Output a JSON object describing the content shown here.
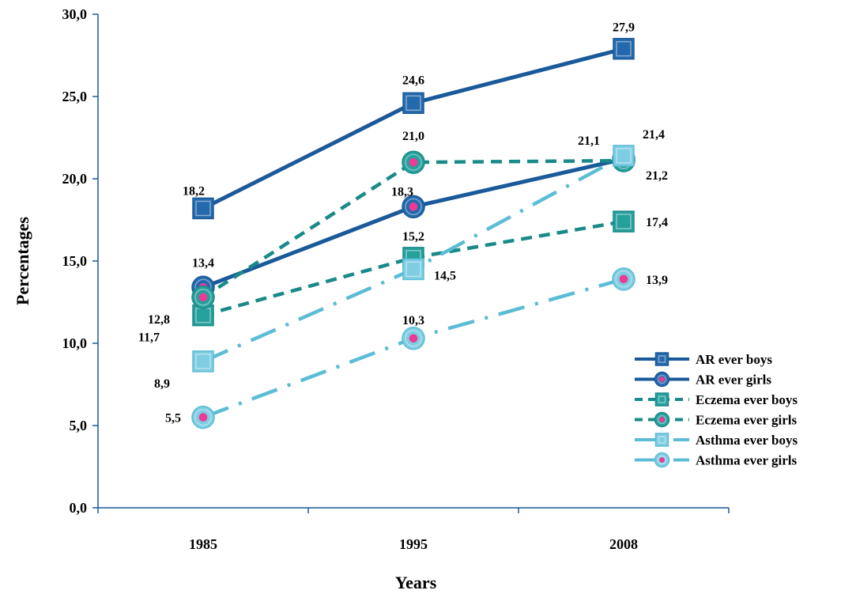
{
  "chart_data": {
    "type": "line",
    "title": "",
    "xlabel": "Years",
    "ylabel": "Percentages",
    "categories": [
      "1985",
      "1995",
      "2008"
    ],
    "ylim": [
      0,
      30
    ],
    "yticks": [
      "0,0",
      "5,0",
      "10,0",
      "15,0",
      "20,0",
      "25,0",
      "30,0"
    ],
    "grid": false,
    "legend_position": "bottom-right",
    "series": [
      {
        "name": "AR ever boys",
        "values": [
          18.2,
          24.6,
          27.9
        ],
        "labels": [
          "18,2",
          "24,6",
          "27,9"
        ],
        "color": "#1a5a9a",
        "dash": "solid",
        "marker": "square",
        "marker_fill": "#2469ac",
        "dot": false
      },
      {
        "name": "AR ever girls",
        "values": [
          13.4,
          18.3,
          21.2
        ],
        "labels": [
          "13,4",
          "18,3",
          "21,2"
        ],
        "color": "#1a5a9a",
        "dash": "solid",
        "marker": "circle",
        "marker_fill": "#2469ac",
        "dot": true
      },
      {
        "name": "Eczema ever boys",
        "values": [
          11.7,
          15.2,
          17.4
        ],
        "labels": [
          "11,7",
          "15,2",
          "17,4"
        ],
        "color": "#1a8a88",
        "dash": "dash",
        "marker": "square",
        "marker_fill": "#25a09c",
        "dot": false
      },
      {
        "name": "Eczema ever girls",
        "values": [
          12.8,
          21.0,
          21.1
        ],
        "labels": [
          "12,8",
          "21,0",
          "21,1"
        ],
        "color": "#1a8a88",
        "dash": "dash",
        "marker": "circle",
        "marker_fill": "#25a09c",
        "dot": true
      },
      {
        "name": "Asthma ever boys",
        "values": [
          8.9,
          14.5,
          21.4
        ],
        "labels": [
          "8,9",
          "14,5",
          "21,4"
        ],
        "color": "#5bbcd6",
        "dash": "dashdot",
        "marker": "square",
        "marker_fill": "#7ecde2",
        "dot": false
      },
      {
        "name": "Asthma ever girls",
        "values": [
          5.5,
          10.3,
          13.9
        ],
        "labels": [
          "5,5",
          "10,3",
          "13,9"
        ],
        "color": "#5bbcd6",
        "dash": "dashdot",
        "marker": "circle",
        "marker_fill": "#7ecde2",
        "dot": true
      }
    ]
  }
}
